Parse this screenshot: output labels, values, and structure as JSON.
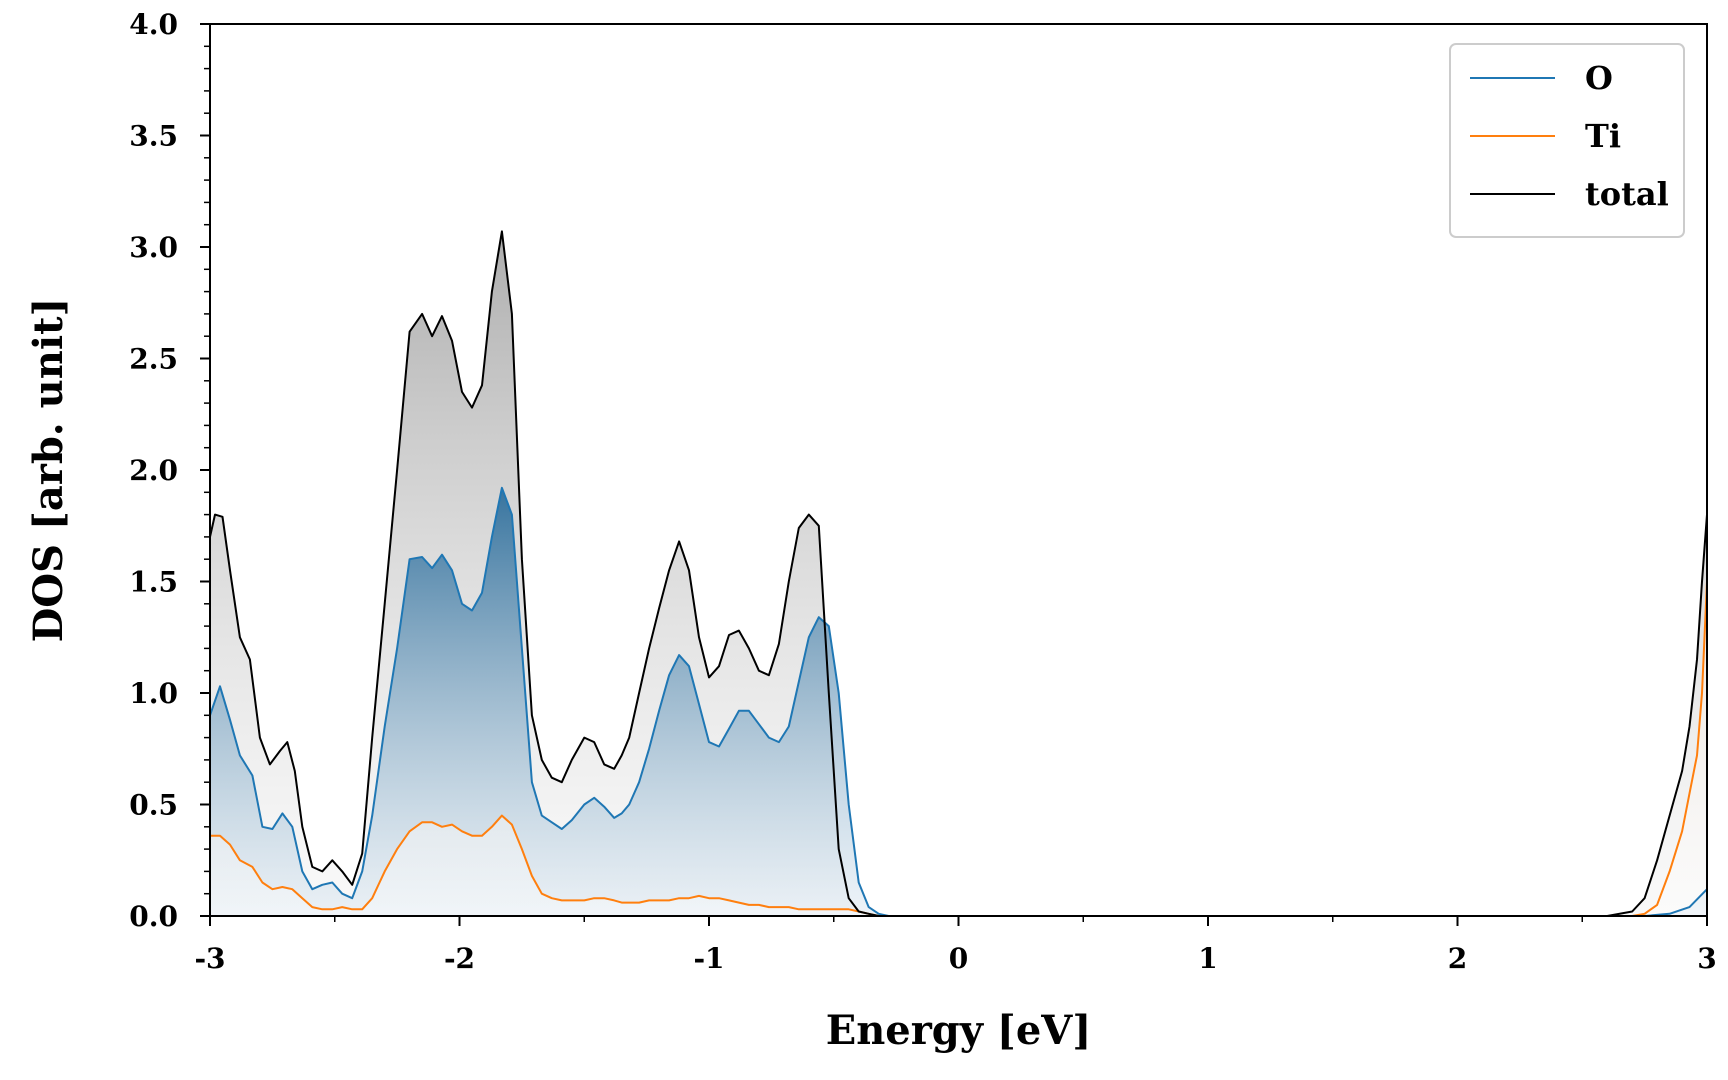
{
  "chart_data": {
    "type": "line",
    "xlabel": "Energy [eV]",
    "ylabel": "DOS [arb. unit]",
    "xlim": [
      -3,
      3
    ],
    "ylim": [
      0,
      4.0
    ],
    "xticks": [
      -3,
      -2,
      -1,
      0,
      1,
      2,
      3
    ],
    "xtick_labels": [
      "-3",
      "-2",
      "-1",
      "0",
      "1",
      "2",
      "3"
    ],
    "yticks": [
      0.0,
      0.5,
      1.0,
      1.5,
      2.0,
      2.5,
      3.0,
      3.5,
      4.0
    ],
    "ytick_labels": [
      "0.0",
      "0.5",
      "1.0",
      "1.5",
      "2.0",
      "2.5",
      "3.0",
      "3.5",
      "4.0"
    ],
    "grid": false,
    "legend_position": "top-right",
    "series": [
      {
        "name": "O",
        "color": "#1f77b4",
        "x": [
          -3.0,
          -2.96,
          -2.92,
          -2.88,
          -2.83,
          -2.79,
          -2.75,
          -2.71,
          -2.67,
          -2.63,
          -2.59,
          -2.55,
          -2.51,
          -2.47,
          -2.43,
          -2.39,
          -2.35,
          -2.3,
          -2.25,
          -2.2,
          -2.15,
          -2.11,
          -2.07,
          -2.03,
          -1.99,
          -1.95,
          -1.91,
          -1.87,
          -1.83,
          -1.79,
          -1.75,
          -1.71,
          -1.67,
          -1.63,
          -1.59,
          -1.55,
          -1.5,
          -1.46,
          -1.42,
          -1.38,
          -1.35,
          -1.32,
          -1.28,
          -1.24,
          -1.2,
          -1.16,
          -1.12,
          -1.08,
          -1.04,
          -1.0,
          -0.96,
          -0.92,
          -0.88,
          -0.84,
          -0.8,
          -0.76,
          -0.72,
          -0.68,
          -0.64,
          -0.6,
          -0.56,
          -0.52,
          -0.48,
          -0.44,
          -0.4,
          -0.36,
          -0.32,
          -0.28,
          -0.25,
          -0.22,
          -0.2,
          -0.15,
          0.0,
          1.0,
          2.0,
          2.6,
          2.75,
          2.85,
          2.93,
          3.0
        ],
        "y": [
          0.9,
          1.03,
          0.88,
          0.72,
          0.63,
          0.4,
          0.39,
          0.46,
          0.4,
          0.2,
          0.12,
          0.14,
          0.15,
          0.1,
          0.08,
          0.2,
          0.45,
          0.85,
          1.2,
          1.6,
          1.61,
          1.56,
          1.62,
          1.55,
          1.4,
          1.37,
          1.45,
          1.7,
          1.92,
          1.8,
          1.2,
          0.6,
          0.45,
          0.42,
          0.39,
          0.43,
          0.5,
          0.53,
          0.49,
          0.44,
          0.46,
          0.5,
          0.6,
          0.75,
          0.92,
          1.08,
          1.17,
          1.12,
          0.95,
          0.78,
          0.76,
          0.84,
          0.92,
          0.92,
          0.86,
          0.8,
          0.78,
          0.85,
          1.05,
          1.25,
          1.34,
          1.3,
          1.0,
          0.5,
          0.15,
          0.04,
          0.01,
          0.0,
          0.0,
          0.0,
          0.0,
          0.0,
          0.0,
          0.0,
          0.0,
          0.0,
          0.0,
          0.01,
          0.04,
          0.12
        ]
      },
      {
        "name": "Ti",
        "color": "#ff7f0e",
        "x": [
          -3.0,
          -2.96,
          -2.92,
          -2.88,
          -2.83,
          -2.79,
          -2.75,
          -2.71,
          -2.67,
          -2.63,
          -2.59,
          -2.55,
          -2.51,
          -2.47,
          -2.43,
          -2.39,
          -2.35,
          -2.3,
          -2.25,
          -2.2,
          -2.15,
          -2.11,
          -2.07,
          -2.03,
          -1.99,
          -1.95,
          -1.91,
          -1.87,
          -1.83,
          -1.79,
          -1.75,
          -1.71,
          -1.67,
          -1.63,
          -1.59,
          -1.55,
          -1.5,
          -1.46,
          -1.42,
          -1.38,
          -1.35,
          -1.32,
          -1.28,
          -1.24,
          -1.2,
          -1.16,
          -1.12,
          -1.08,
          -1.04,
          -1.0,
          -0.96,
          -0.92,
          -0.88,
          -0.84,
          -0.8,
          -0.76,
          -0.72,
          -0.68,
          -0.64,
          -0.6,
          -0.56,
          -0.52,
          -0.48,
          -0.44,
          -0.4,
          -0.36,
          -0.32,
          -0.28,
          -0.25,
          -0.22,
          -0.2,
          -0.15,
          0.0,
          1.0,
          2.0,
          2.6,
          2.7,
          2.75,
          2.8,
          2.85,
          2.9,
          2.93,
          2.96,
          2.98,
          3.0
        ],
        "y": [
          0.36,
          0.36,
          0.32,
          0.25,
          0.22,
          0.15,
          0.12,
          0.13,
          0.12,
          0.08,
          0.04,
          0.03,
          0.03,
          0.04,
          0.03,
          0.03,
          0.08,
          0.2,
          0.3,
          0.38,
          0.42,
          0.42,
          0.4,
          0.41,
          0.38,
          0.36,
          0.36,
          0.4,
          0.45,
          0.41,
          0.3,
          0.18,
          0.1,
          0.08,
          0.07,
          0.07,
          0.07,
          0.08,
          0.08,
          0.07,
          0.06,
          0.06,
          0.06,
          0.07,
          0.07,
          0.07,
          0.08,
          0.08,
          0.09,
          0.08,
          0.08,
          0.07,
          0.06,
          0.05,
          0.05,
          0.04,
          0.04,
          0.04,
          0.03,
          0.03,
          0.03,
          0.03,
          0.03,
          0.03,
          0.02,
          0.01,
          0.0,
          0.0,
          0.0,
          0.0,
          0.0,
          0.0,
          0.0,
          0.0,
          0.0,
          0.0,
          0.0,
          0.01,
          0.05,
          0.2,
          0.38,
          0.55,
          0.72,
          1.0,
          1.5
        ]
      },
      {
        "name": "total",
        "color": "#000000",
        "x": [
          -3.0,
          -2.98,
          -2.95,
          -2.92,
          -2.88,
          -2.84,
          -2.8,
          -2.76,
          -2.72,
          -2.69,
          -2.66,
          -2.63,
          -2.59,
          -2.55,
          -2.51,
          -2.47,
          -2.43,
          -2.39,
          -2.35,
          -2.3,
          -2.25,
          -2.2,
          -2.15,
          -2.11,
          -2.07,
          -2.03,
          -1.99,
          -1.95,
          -1.91,
          -1.87,
          -1.83,
          -1.79,
          -1.75,
          -1.71,
          -1.67,
          -1.63,
          -1.59,
          -1.55,
          -1.5,
          -1.46,
          -1.42,
          -1.38,
          -1.35,
          -1.32,
          -1.28,
          -1.24,
          -1.2,
          -1.16,
          -1.12,
          -1.08,
          -1.04,
          -1.0,
          -0.96,
          -0.92,
          -0.88,
          -0.84,
          -0.8,
          -0.76,
          -0.72,
          -0.68,
          -0.64,
          -0.6,
          -0.56,
          -0.52,
          -0.48,
          -0.44,
          -0.4,
          -0.36,
          -0.32,
          -0.28,
          -0.25,
          -0.22,
          -0.2,
          -0.15,
          0.0,
          1.0,
          2.0,
          2.6,
          2.7,
          2.75,
          2.8,
          2.85,
          2.9,
          2.93,
          2.96,
          2.98,
          3.0
        ],
        "y": [
          1.7,
          1.8,
          1.79,
          1.55,
          1.25,
          1.15,
          0.8,
          0.68,
          0.74,
          0.78,
          0.65,
          0.4,
          0.22,
          0.2,
          0.25,
          0.2,
          0.14,
          0.28,
          0.8,
          1.4,
          2.0,
          2.62,
          2.7,
          2.6,
          2.69,
          2.58,
          2.35,
          2.28,
          2.38,
          2.8,
          3.07,
          2.7,
          1.6,
          0.9,
          0.7,
          0.62,
          0.6,
          0.7,
          0.8,
          0.78,
          0.68,
          0.66,
          0.72,
          0.8,
          1.0,
          1.2,
          1.38,
          1.55,
          1.68,
          1.55,
          1.25,
          1.07,
          1.12,
          1.26,
          1.28,
          1.2,
          1.1,
          1.08,
          1.22,
          1.5,
          1.74,
          1.8,
          1.75,
          1.0,
          0.3,
          0.08,
          0.02,
          0.01,
          0.0,
          0.0,
          0.0,
          0.0,
          0.0,
          0.0,
          0.0,
          0.0,
          0.0,
          0.0,
          0.02,
          0.08,
          0.25,
          0.45,
          0.65,
          0.85,
          1.15,
          1.5,
          1.8
        ]
      }
    ]
  }
}
